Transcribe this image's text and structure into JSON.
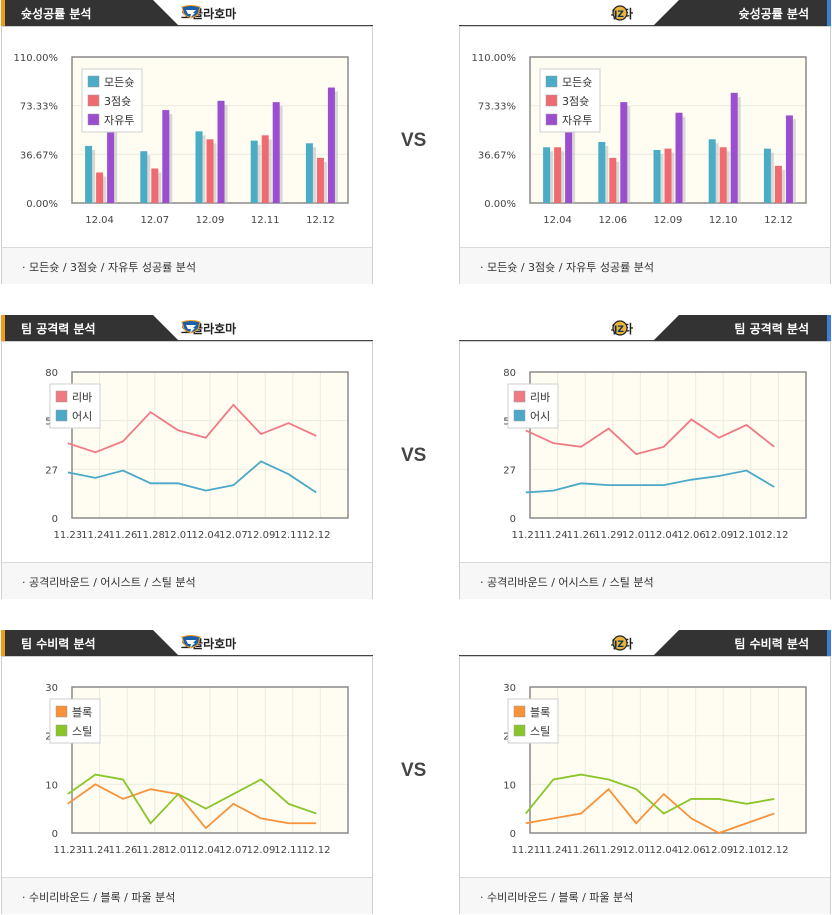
{
  "vs_label": "VS",
  "colors": {
    "header_dark": "#333333",
    "accent_okc": "#f29b1d",
    "accent_uta": "#3a7fd5",
    "allshot": "#4bacc6",
    "three": "#f06a72",
    "free": "#9b4fcf",
    "rebound": "#f07a84",
    "assist": "#4aa9c8",
    "block": "#f7923a",
    "steal": "#8ac52a",
    "plot_bg": "#fffdf2"
  },
  "panels": [
    {
      "id": "shooting-okc",
      "side": "left",
      "title": "슛성공률 분석",
      "team": "오클라호마",
      "team_icon": "thunder-logo-icon",
      "footer": "· 모든슛 / 3점슛 / 자유투 성공률 분석",
      "chart_data": {
        "type": "bar",
        "yticks": [
          "110.00%",
          "73.33%",
          "36.67%",
          "0.00%"
        ],
        "ylim": [
          0,
          110
        ],
        "categories": [
          "12.04",
          "12.07",
          "12.09",
          "12.11",
          "12.12"
        ],
        "series": [
          {
            "name": "모든슛",
            "color": "#4bacc6",
            "values": [
              43,
              39,
              54,
              47,
              45
            ]
          },
          {
            "name": "3점슛",
            "color": "#f06a72",
            "values": [
              23,
              26,
              48,
              51,
              34
            ]
          },
          {
            "name": "자유투",
            "color": "#9b4fcf",
            "values": [
              72,
              70,
              77,
              76,
              87
            ]
          }
        ]
      }
    },
    {
      "id": "shooting-uta",
      "side": "right",
      "title": "슛성공률 분석",
      "team": "유타",
      "team_icon": "jazz-logo-icon",
      "footer": "· 모든슛 / 3점슛 / 자유투 성공률 분석",
      "chart_data": {
        "type": "bar",
        "yticks": [
          "110.00%",
          "73.33%",
          "36.67%",
          "0.00%"
        ],
        "ylim": [
          0,
          110
        ],
        "categories": [
          "12.04",
          "12.06",
          "12.09",
          "12.10",
          "12.12"
        ],
        "series": [
          {
            "name": "모든슛",
            "color": "#4bacc6",
            "values": [
              42,
              46,
              40,
              48,
              41
            ]
          },
          {
            "name": "3점슛",
            "color": "#f06a72",
            "values": [
              42,
              34,
              41,
              42,
              28
            ]
          },
          {
            "name": "자유투",
            "color": "#9b4fcf",
            "values": [
              70,
              76,
              68,
              83,
              66
            ]
          }
        ]
      }
    },
    {
      "id": "offense-okc",
      "side": "left",
      "title": "팀 공격력 분석",
      "team": "오클라호마",
      "team_icon": "thunder-logo-icon",
      "footer": "· 공격리바운드 / 어시스트 / 스틸 분석",
      "chart_data": {
        "type": "line",
        "yticks": [
          "80",
          "53",
          "27",
          "0"
        ],
        "ylim": [
          0,
          80
        ],
        "categories": [
          "11.23",
          "11.24",
          "11.26",
          "11.28",
          "12.01",
          "12.04",
          "12.07",
          "12.09",
          "12.11",
          "12.12"
        ],
        "series": [
          {
            "name": "리바",
            "color": "#f07a84",
            "values": [
              41,
              36,
              42,
              58,
              48,
              44,
              62,
              46,
              52,
              45
            ]
          },
          {
            "name": "어시",
            "color": "#4aa9c8",
            "values": [
              25,
              22,
              26,
              19,
              19,
              15,
              18,
              31,
              24,
              14
            ]
          }
        ]
      }
    },
    {
      "id": "offense-uta",
      "side": "right",
      "title": "팀 공격력 분석",
      "team": "유타",
      "team_icon": "jazz-logo-icon",
      "footer": "· 공격리바운드 / 어시스트 / 스틸 분석",
      "chart_data": {
        "type": "line",
        "yticks": [
          "80",
          "53",
          "27",
          "0"
        ],
        "ylim": [
          0,
          80
        ],
        "categories": [
          "11.21",
          "11.24",
          "11.26",
          "11.29",
          "12.01",
          "12.04",
          "12.06",
          "12.09",
          "12.10",
          "12.12"
        ],
        "series": [
          {
            "name": "리바",
            "color": "#f07a84",
            "values": [
              48,
              41,
              39,
              49,
              35,
              39,
              54,
              44,
              51,
              39
            ]
          },
          {
            "name": "어시",
            "color": "#4aa9c8",
            "values": [
              14,
              15,
              19,
              18,
              18,
              18,
              21,
              23,
              26,
              17
            ]
          }
        ]
      }
    },
    {
      "id": "defense-okc",
      "side": "left",
      "title": "팀 수비력 분석",
      "team": "오클라호마",
      "team_icon": "thunder-logo-icon",
      "footer": "· 수비리바운드 / 블록 / 파울 분석",
      "chart_data": {
        "type": "line",
        "yticks": [
          "30",
          "20",
          "10",
          "0"
        ],
        "ylim": [
          0,
          30
        ],
        "categories": [
          "11.23",
          "11.24",
          "11.26",
          "11.28",
          "12.01",
          "12.04",
          "12.07",
          "12.09",
          "12.11",
          "12.12"
        ],
        "series": [
          {
            "name": "블록",
            "color": "#f7923a",
            "values": [
              6,
              10,
              7,
              9,
              8,
              1,
              6,
              3,
              2,
              2
            ]
          },
          {
            "name": "스틸",
            "color": "#8ac52a",
            "values": [
              8,
              12,
              11,
              2,
              8,
              5,
              8,
              11,
              6,
              4
            ]
          }
        ]
      }
    },
    {
      "id": "defense-uta",
      "side": "right",
      "title": "팀 수비력 분석",
      "team": "유타",
      "team_icon": "jazz-logo-icon",
      "footer": "· 수비리바운드 / 블록 / 파울 분석",
      "chart_data": {
        "type": "line",
        "yticks": [
          "30",
          "20",
          "10",
          "0"
        ],
        "ylim": [
          0,
          30
        ],
        "categories": [
          "11.21",
          "11.24",
          "11.26",
          "11.29",
          "12.01",
          "12.04",
          "12.06",
          "12.09",
          "12.10",
          "12.12"
        ],
        "series": [
          {
            "name": "블록",
            "color": "#f7923a",
            "values": [
              2,
              3,
              4,
              9,
              2,
              8,
              3,
              0,
              2,
              4
            ]
          },
          {
            "name": "스틸",
            "color": "#8ac52a",
            "values": [
              4,
              11,
              12,
              11,
              9,
              4,
              7,
              7,
              6,
              7
            ]
          }
        ]
      }
    }
  ]
}
